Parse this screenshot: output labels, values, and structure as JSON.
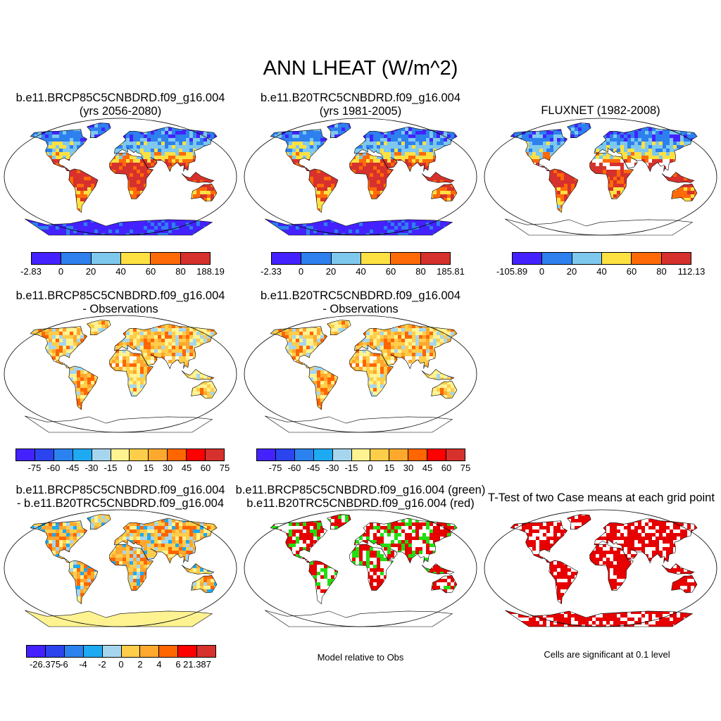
{
  "figure_title": "ANN LHEAT (W/m^2)",
  "colors": {
    "abs": [
      "#4422ff",
      "#2d80ee",
      "#7ec8ee",
      "#fde142",
      "#ff6a08",
      "#d6312c"
    ],
    "diff": [
      "#4422ff",
      "#2b44ee",
      "#2b82ee",
      "#1eaaf2",
      "#a6d6ee",
      "#fff391",
      "#fecd4a",
      "#fea82e",
      "#ff6600",
      "#ff0000",
      "#d6312c"
    ],
    "ttest": "#e60000",
    "green": "#22dd11",
    "red": "#e60000"
  },
  "panels": [
    {
      "id": "case1",
      "title": [
        "b.e11.BRCP85C5CNBDRD.f09_g16.004",
        "(yrs 2056-2080)"
      ],
      "style": "abs",
      "antarctica": true
    },
    {
      "id": "case2",
      "title": [
        "b.e11.B20TRC5CNBDRD.f09_g16.004",
        "(yrs 1981-2005)"
      ],
      "style": "abs",
      "antarctica": true
    },
    {
      "id": "obs",
      "title": [
        "FLUXNET (1982-2008)"
      ],
      "style": "obs",
      "antarctica": false
    },
    {
      "id": "case1-obs",
      "title": [
        "b.e11.BRCP85C5CNBDRD.f09_g16.004",
        "- Observations"
      ],
      "style": "diffobs",
      "antarctica": false
    },
    {
      "id": "case2-obs",
      "title": [
        "b.e11.B20TRC5CNBDRD.f09_g16.004",
        "- Observations"
      ],
      "style": "diffobs",
      "antarctica": false
    },
    {
      "id": "case1-case2",
      "title": [
        "b.e11.BRCP85C5CNBDRD.f09_g16.004",
        "- b.e11.B20TRC5CNBDRD.f09_g16.004"
      ],
      "style": "diffcase",
      "antarctica": true
    },
    {
      "id": "green-red",
      "title": [
        "b.e11.BRCP85C5CNBDRD.f09_g16.004 (green)",
        "b.e11.B20TRC5CNBDRD.f09_g16.004 (red)"
      ],
      "style": "greenred",
      "antarctica": false
    },
    {
      "id": "ttest",
      "title": [
        "T-Test of two Case means at each grid point"
      ],
      "style": "ttest",
      "antarctica": true
    }
  ],
  "colorbars": [
    {
      "id": "cb-case1",
      "labels": [
        "-2.83",
        "0",
        "20",
        "40",
        "60",
        "80",
        "188.19"
      ]
    },
    {
      "id": "cb-case2",
      "labels": [
        "-2.33",
        "0",
        "20",
        "40",
        "60",
        "80",
        "185.81"
      ]
    },
    {
      "id": "cb-obs",
      "labels": [
        "-105.89",
        "0",
        "20",
        "40",
        "60",
        "80",
        "112.13"
      ]
    },
    {
      "id": "cb-d1",
      "labels": [
        "-75",
        "-60",
        "-45",
        "-30",
        "-15",
        "0",
        "15",
        "30",
        "45",
        "60",
        "75"
      ]
    },
    {
      "id": "cb-d2",
      "labels": [
        "-75",
        "-60",
        "-45",
        "-30",
        "-15",
        "0",
        "15",
        "30",
        "45",
        "60",
        "75"
      ]
    },
    {
      "id": "cb-d3",
      "labels": [
        "-26.375",
        "-6",
        "-4",
        "-2",
        "0",
        "2",
        "4",
        "6",
        "21.387"
      ]
    }
  ],
  "footnotes": {
    "model_relative": "Model relative to Obs",
    "significance": "Cells are significant at 0.1 level"
  }
}
